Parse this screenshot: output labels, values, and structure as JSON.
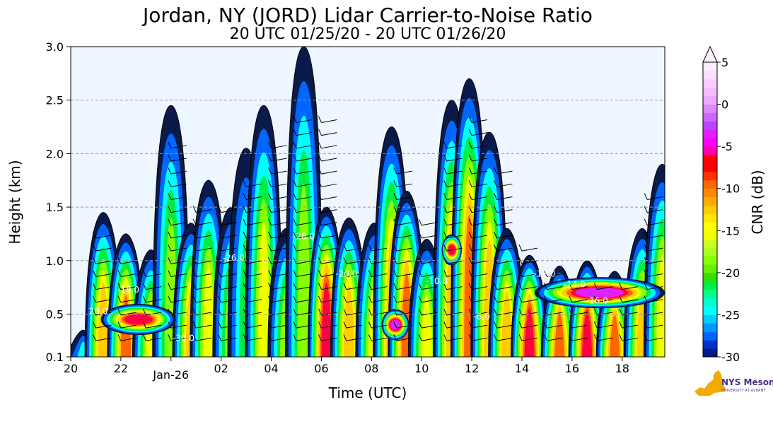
{
  "chart_data": {
    "type": "heatmap",
    "title": "Jordan, NY (JORD) Lidar Carrier-to-Noise Ratio",
    "subtitle": "20 UTC 01/25/20 - 20 UTC 01/26/20",
    "xlabel": "Time (UTC)",
    "ylabel": "Height (km)",
    "x_ticks": [
      {
        "hours": 0,
        "label": "20"
      },
      {
        "hours": 2,
        "label": "22"
      },
      {
        "hours": 4,
        "label": "Jan-26"
      },
      {
        "hours": 6,
        "label": "02"
      },
      {
        "hours": 8,
        "label": "04"
      },
      {
        "hours": 10,
        "label": "06"
      },
      {
        "hours": 12,
        "label": "08"
      },
      {
        "hours": 14,
        "label": "10"
      },
      {
        "hours": 16,
        "label": "12"
      },
      {
        "hours": 18,
        "label": "14"
      },
      {
        "hours": 20,
        "label": "16"
      },
      {
        "hours": 22,
        "label": "18"
      }
    ],
    "xlim_hours": [
      0,
      23.7
    ],
    "y_ticks": [
      0.1,
      0.5,
      1.0,
      1.5,
      2.0,
      2.5,
      3.0
    ],
    "y_tick_labels": [
      "0.1",
      "0.5",
      "1.0",
      "1.5",
      "2.0",
      "2.5",
      "3.0"
    ],
    "ylim": [
      0.1,
      3.0
    ],
    "grid": "horizontal-dashed",
    "colorbar": {
      "label": "CNR (dB)",
      "range": [
        -30,
        5
      ],
      "step": 1,
      "ticks": [
        5,
        0,
        -5,
        -10,
        -15,
        -20,
        -25,
        -30
      ],
      "tick_labels": [
        "5",
        "0",
        "-5",
        "-10",
        "-15",
        "-20",
        "-25",
        "-30"
      ],
      "extend": "max",
      "colors_low_to_high": [
        "#0a1a4a",
        "#001a8c",
        "#0033cc",
        "#0066ff",
        "#0099ff",
        "#00ccff",
        "#00ffff",
        "#00ffcc",
        "#00ff88",
        "#00ee44",
        "#33dd00",
        "#66ee00",
        "#88ff00",
        "#aaff22",
        "#ccff22",
        "#eeff00",
        "#ffff00",
        "#ffe600",
        "#ffcc00",
        "#ffaa00",
        "#ff8800",
        "#ff6600",
        "#ff3300",
        "#ff0000",
        "#ff0044",
        "#ff00aa",
        "#ff00ff",
        "#dd22ff",
        "#bb44ff",
        "#cc66ff",
        "#dd88ff",
        "#eeaaff",
        "#f4bbff",
        "#f8ccff",
        "#fbddff",
        "#fdeeff"
      ]
    },
    "contour_labels": [
      "26.0",
      "-26.0",
      "-28.0",
      "-20.0",
      "-10.0",
      "-6.0",
      "-12.0",
      "-14.0",
      "-16.0",
      "-18.0",
      "-30.0"
    ],
    "columns": [
      {
        "x": 0.5,
        "top": 0.35,
        "peak": -22
      },
      {
        "x": 1.3,
        "top": 1.45,
        "peak": -12
      },
      {
        "x": 2.2,
        "top": 1.25,
        "peak": -8
      },
      {
        "x": 3.2,
        "top": 1.1,
        "peak": -14
      },
      {
        "x": 4.0,
        "top": 2.45,
        "peak": -18
      },
      {
        "x": 4.8,
        "top": 1.35,
        "peak": -12
      },
      {
        "x": 5.5,
        "top": 1.75,
        "peak": -14
      },
      {
        "x": 6.4,
        "top": 1.5,
        "peak": -16
      },
      {
        "x": 7.0,
        "top": 2.05,
        "peak": -20
      },
      {
        "x": 7.7,
        "top": 2.45,
        "peak": -14
      },
      {
        "x": 8.6,
        "top": 1.3,
        "peak": -16
      },
      {
        "x": 9.3,
        "top": 3.0,
        "peak": -18
      },
      {
        "x": 10.2,
        "top": 1.5,
        "peak": -6
      },
      {
        "x": 11.1,
        "top": 1.4,
        "peak": -10
      },
      {
        "x": 12.1,
        "top": 1.35,
        "peak": -14
      },
      {
        "x": 12.8,
        "top": 2.25,
        "peak": -10
      },
      {
        "x": 13.4,
        "top": 1.65,
        "peak": -8
      },
      {
        "x": 14.2,
        "top": 1.2,
        "peak": -14
      },
      {
        "x": 15.2,
        "top": 2.5,
        "peak": -10
      },
      {
        "x": 15.9,
        "top": 2.7,
        "peak": -8
      },
      {
        "x": 16.7,
        "top": 2.2,
        "peak": -12
      },
      {
        "x": 17.4,
        "top": 1.3,
        "peak": -10
      },
      {
        "x": 18.3,
        "top": 1.05,
        "peak": -6
      },
      {
        "x": 19.5,
        "top": 0.95,
        "peak": -8
      },
      {
        "x": 20.6,
        "top": 1.0,
        "peak": -6
      },
      {
        "x": 21.7,
        "top": 0.9,
        "peak": -8
      },
      {
        "x": 22.8,
        "top": 1.3,
        "peak": -10
      },
      {
        "x": 23.6,
        "top": 1.9,
        "peak": -14
      }
    ],
    "bands": [
      {
        "x0": 1.2,
        "x1": 4.2,
        "y": 0.45,
        "peak": -4
      },
      {
        "x0": 12.4,
        "x1": 13.5,
        "y": 0.4,
        "peak": -2
      },
      {
        "x0": 18.5,
        "x1": 23.7,
        "y": 0.7,
        "peak": -2
      },
      {
        "x0": 14.8,
        "x1": 15.6,
        "y": 1.1,
        "peak": -4
      }
    ]
  },
  "logo": {
    "text": "NYS Mesonet",
    "sub": "UNIVERSITY AT ALBANY"
  }
}
